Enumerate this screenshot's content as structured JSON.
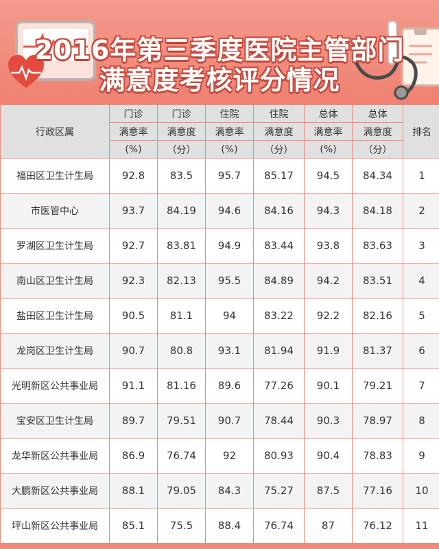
{
  "title": {
    "line1": "2016年第三季度医院主管部门",
    "line2": "满意度考核评分情况"
  },
  "colors": {
    "banner": "#ef8171",
    "title_outline": "#c84b3f",
    "header_bg": "#e0e0e0",
    "row_odd": "#ffffff",
    "row_even": "#f3f3f3",
    "grid": "#f08a7b"
  },
  "table": {
    "header": {
      "district": "行政区属",
      "rank": "排名",
      "columns": [
        {
          "line1": "门诊",
          "line2": "满意率",
          "line3": "(%)"
        },
        {
          "line1": "门诊",
          "line2": "满意度",
          "line3": "（分）"
        },
        {
          "line1": "住院",
          "line2": "满意率",
          "line3": "(%)"
        },
        {
          "line1": "住院",
          "line2": "满意度",
          "line3": "（分）"
        },
        {
          "line1": "总体",
          "line2": "满意率",
          "line3": "(%)"
        },
        {
          "line1": "总体",
          "line2": "满意度",
          "line3": "（分）"
        }
      ]
    },
    "rows": [
      {
        "name": "福田区卫生计生局",
        "v": [
          "92.8",
          "83.5",
          "95.7",
          "85.17",
          "94.5",
          "84.34"
        ],
        "rank": "1"
      },
      {
        "name": "市医管中心",
        "v": [
          "93.7",
          "84.19",
          "94.6",
          "84.16",
          "94.3",
          "84.18"
        ],
        "rank": "2"
      },
      {
        "name": "罗湖区卫生计生局",
        "v": [
          "92.7",
          "83.81",
          "94.9",
          "83.44",
          "93.8",
          "83.63"
        ],
        "rank": "3"
      },
      {
        "name": "南山区卫生计生局",
        "v": [
          "92.3",
          "82.13",
          "95.5",
          "84.89",
          "94.2",
          "83.51"
        ],
        "rank": "4"
      },
      {
        "name": "盐田区卫生计生局",
        "v": [
          "90.5",
          "81.1",
          "94",
          "83.22",
          "92.2",
          "82.16"
        ],
        "rank": "5"
      },
      {
        "name": "龙岗区卫生计生局",
        "v": [
          "90.7",
          "80.8",
          "93.1",
          "81.94",
          "91.9",
          "81.37"
        ],
        "rank": "6"
      },
      {
        "name": "光明新区公共事业局",
        "v": [
          "91.1",
          "81.16",
          "89.6",
          "77.26",
          "90.1",
          "79.21"
        ],
        "rank": "7"
      },
      {
        "name": "宝安区卫生计生局",
        "v": [
          "89.7",
          "79.51",
          "90.7",
          "78.44",
          "90.3",
          "78.97"
        ],
        "rank": "8"
      },
      {
        "name": "龙华新区公共事业局",
        "v": [
          "86.9",
          "76.74",
          "92",
          "80.93",
          "90.4",
          "78.83"
        ],
        "rank": "9"
      },
      {
        "name": "大鹏新区公共事业局",
        "v": [
          "88.1",
          "79.05",
          "84.3",
          "75.27",
          "87.5",
          "77.16"
        ],
        "rank": "10"
      },
      {
        "name": "坪山新区公共事业局",
        "v": [
          "85.1",
          "75.5",
          "88.4",
          "76.74",
          "87",
          "76.12"
        ],
        "rank": "11"
      }
    ]
  }
}
